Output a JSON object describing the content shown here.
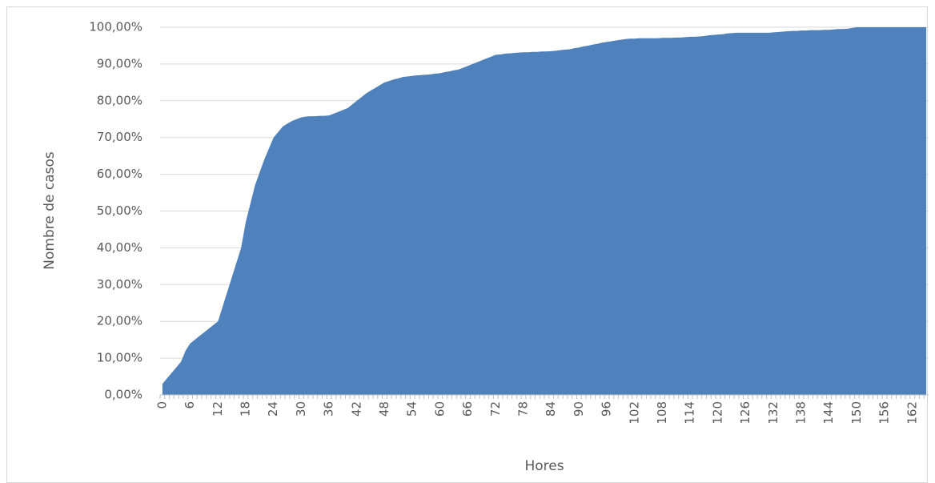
{
  "chart_data": {
    "type": "area",
    "x_label": "Hores",
    "y_label": "Nombre de casos",
    "color": "#4f81bd",
    "grid": true,
    "categories": [
      "0",
      null,
      null,
      null,
      null,
      null,
      "6",
      null,
      null,
      null,
      null,
      null,
      "12",
      null,
      null,
      null,
      null,
      null,
      "18",
      null,
      null,
      null,
      null,
      null,
      "24",
      null,
      null,
      null,
      null,
      null,
      "30",
      null,
      null,
      null,
      null,
      null,
      "36",
      null,
      null,
      null,
      null,
      null,
      "42",
      null,
      null,
      null,
      null,
      null,
      "48",
      null,
      null,
      null,
      null,
      null,
      "54",
      null,
      null,
      null,
      null,
      null,
      "60",
      null,
      null,
      null,
      null,
      null,
      "66",
      null,
      null,
      null,
      null,
      null,
      "72",
      null,
      null,
      null,
      null,
      null,
      "78",
      null,
      null,
      null,
      null,
      null,
      "84",
      null,
      null,
      null,
      null,
      null,
      "90",
      null,
      null,
      null,
      null,
      null,
      "96",
      null,
      null,
      null,
      null,
      null,
      "102",
      null,
      null,
      null,
      null,
      null,
      "108",
      null,
      null,
      null,
      null,
      null,
      "114",
      null,
      null,
      null,
      null,
      null,
      "120",
      null,
      null,
      null,
      null,
      null,
      "126",
      null,
      null,
      null,
      null,
      null,
      "132",
      null,
      null,
      null,
      null,
      null,
      "138",
      null,
      null,
      null,
      null,
      null,
      "144",
      null,
      null,
      null,
      null,
      null,
      "150",
      null,
      null,
      null,
      null,
      null,
      "156",
      null,
      null,
      null,
      null,
      null,
      "162",
      null,
      null,
      null
    ],
    "values": [
      3,
      4.5,
      6,
      7.5,
      9,
      12,
      14,
      15,
      16,
      17,
      18,
      19,
      20,
      24,
      28,
      32,
      36,
      40,
      47,
      52,
      57,
      60.5,
      64,
      67,
      70,
      71.5,
      73,
      73.8,
      74.5,
      75,
      75.5,
      75.7,
      75.8,
      75.8,
      75.9,
      75.9,
      76,
      76.5,
      77,
      77.5,
      78,
      79,
      80,
      81,
      82,
      82.8,
      83.5,
      84.3,
      85,
      85.4,
      85.8,
      86.1,
      86.5,
      86.6,
      86.8,
      86.9,
      87,
      87.1,
      87.2,
      87.4,
      87.5,
      87.8,
      88,
      88.3,
      88.5,
      89,
      89.5,
      90,
      90.5,
      91,
      91.5,
      92,
      92.5,
      92.6,
      92.8,
      92.9,
      93,
      93.1,
      93.2,
      93.2,
      93.3,
      93.3,
      93.4,
      93.4,
      93.5,
      93.6,
      93.8,
      93.9,
      94,
      94.3,
      94.5,
      94.8,
      95,
      95.3,
      95.5,
      95.8,
      96,
      96.2,
      96.4,
      96.6,
      96.8,
      96.9,
      96.9,
      97,
      97,
      97,
      97,
      97,
      97.1,
      97.1,
      97.1,
      97.2,
      97.2,
      97.3,
      97.4,
      97.4,
      97.5,
      97.6,
      97.8,
      97.9,
      98,
      98.1,
      98.3,
      98.4,
      98.5,
      98.5,
      98.5,
      98.5,
      98.5,
      98.5,
      98.5,
      98.5,
      98.6,
      98.7,
      98.8,
      98.9,
      99,
      99,
      99.1,
      99.1,
      99.2,
      99.2,
      99.2,
      99.3,
      99.3,
      99.4,
      99.5,
      99.5,
      99.6,
      99.8,
      100,
      100,
      100,
      100,
      100,
      100,
      100,
      100,
      100,
      100,
      100,
      100,
      100,
      100,
      100,
      100
    ],
    "ylim": [
      0,
      100
    ],
    "yticks": [
      {
        "value": 0,
        "label": "0,00%"
      },
      {
        "value": 10,
        "label": "10,00%"
      },
      {
        "value": 20,
        "label": "20,00%"
      },
      {
        "value": 30,
        "label": "30,00%"
      },
      {
        "value": 40,
        "label": "40,00%"
      },
      {
        "value": 50,
        "label": "50,00%"
      },
      {
        "value": 60,
        "label": "60,00%"
      },
      {
        "value": 70,
        "label": "70,00%"
      },
      {
        "value": 80,
        "label": "80,00%"
      },
      {
        "value": 90,
        "label": "90,00%"
      },
      {
        "value": 100,
        "label": "100,00%"
      }
    ]
  }
}
